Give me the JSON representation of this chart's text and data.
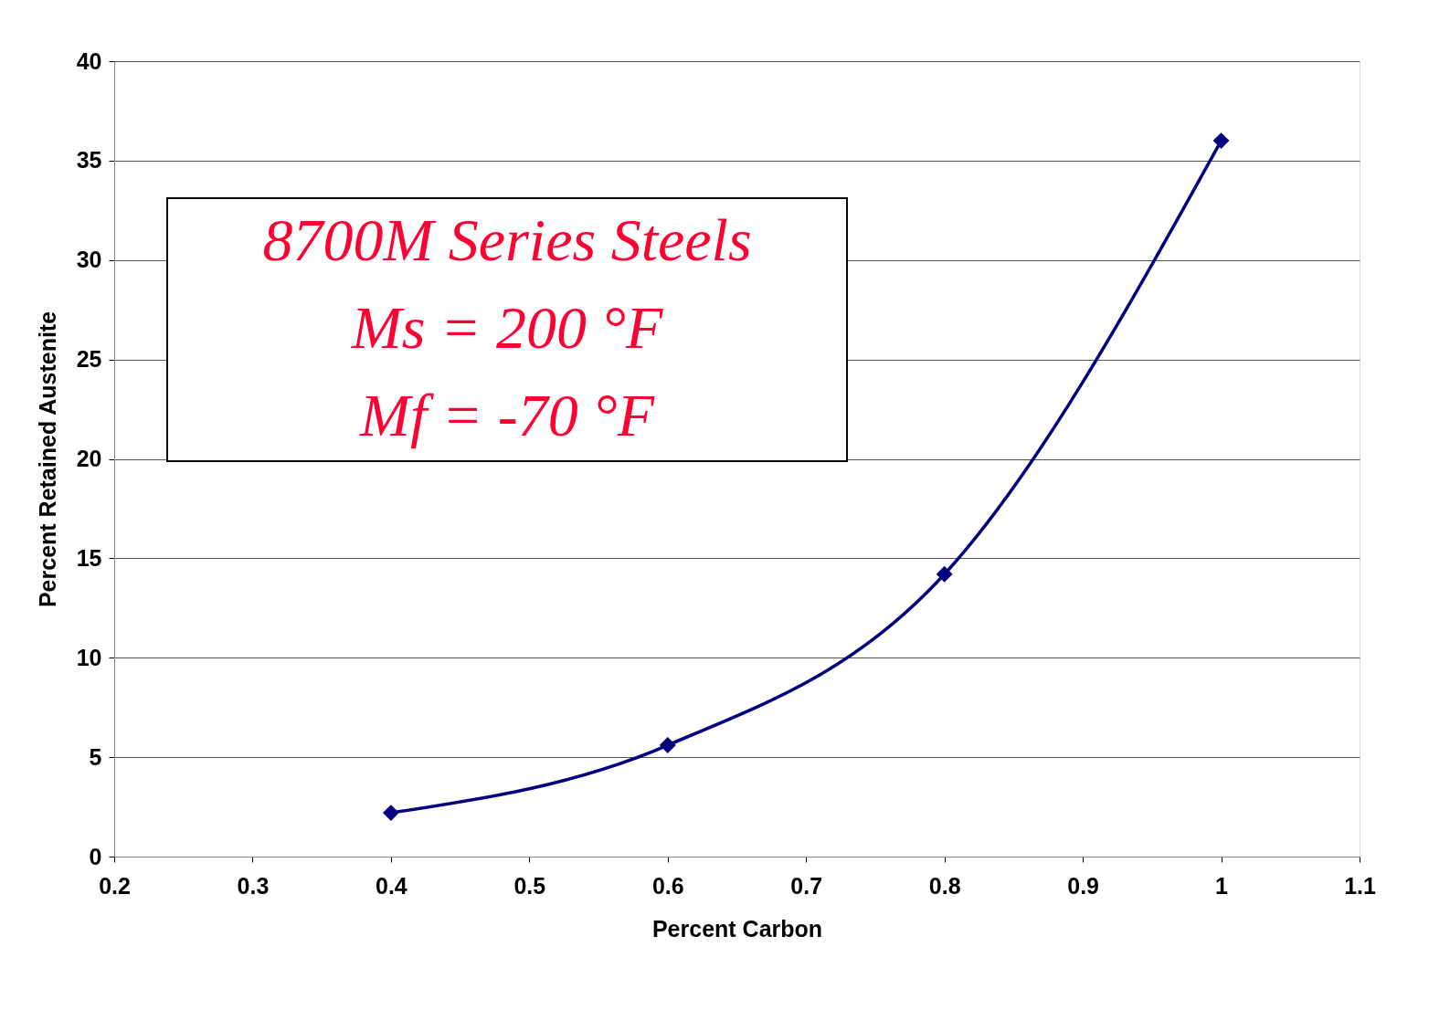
{
  "chart_data": {
    "type": "line",
    "xlabel": "Percent Carbon",
    "ylabel": "Percent Retained Austenite",
    "x": [
      0.4,
      0.6,
      0.8,
      1.0
    ],
    "series": [
      {
        "color": "#000080",
        "values": [
          2.2,
          5.6,
          14.2,
          36
        ]
      }
    ],
    "xlim": [
      0.2,
      1.1
    ],
    "xticks": [
      0.2,
      0.3,
      0.4,
      0.5,
      0.6,
      0.7,
      0.8,
      0.9,
      1,
      1.1
    ],
    "ylim": [
      0,
      40
    ],
    "yticks": [
      0,
      5,
      10,
      15,
      20,
      25,
      30,
      35,
      40
    ],
    "grid": "y",
    "marker": "diamond",
    "line_style": "solid",
    "annotations": [
      "8700M Series Steels",
      "Ms = 200 °F",
      "Mf = -70 °F"
    ]
  }
}
